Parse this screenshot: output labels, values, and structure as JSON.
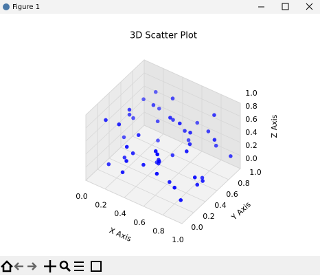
{
  "window": {
    "title": "Figure 1"
  },
  "chart_data": {
    "type": "scatter3d",
    "title": "3D Scatter Plot",
    "xlabel": "X Axis",
    "ylabel": "Y Axis",
    "zlabel": "Z Axis",
    "color": "#0000ff",
    "x": [
      0.12,
      0.85,
      0.43,
      0.67,
      0.21,
      0.95,
      0.34,
      0.58,
      0.08,
      0.77,
      0.49,
      0.29,
      0.91,
      0.15,
      0.63,
      0.38,
      0.72,
      0.05,
      0.54,
      0.83,
      0.26,
      0.97,
      0.44,
      0.61,
      0.18,
      0.79,
      0.36,
      0.69,
      0.02,
      0.88,
      0.52,
      0.24,
      0.74,
      0.41,
      0.93,
      0.11,
      0.57,
      0.32,
      0.81,
      0.66,
      0.47,
      0.99,
      0.19,
      0.71,
      0.06,
      0.86,
      0.39,
      0.55,
      0.28,
      0.76
    ],
    "y": [
      0.55,
      0.12,
      0.78,
      0.33,
      0.91,
      0.64,
      0.07,
      0.49,
      0.26,
      0.83,
      0.18,
      0.68,
      0.41,
      0.95,
      0.22,
      0.59,
      0.04,
      0.73,
      0.87,
      0.36,
      0.14,
      0.27,
      0.52,
      0.69,
      0.45,
      0.93,
      0.31,
      0.08,
      0.62,
      0.75,
      0.39,
      0.84,
      0.57,
      0.02,
      0.47,
      0.16,
      0.97,
      0.28,
      0.66,
      0.11,
      0.72,
      0.85,
      0.35,
      0.44,
      0.89,
      0.21,
      0.06,
      0.58,
      0.77,
      0.53
    ],
    "z": [
      0.62,
      0.35,
      0.88,
      0.14,
      0.47,
      0.71,
      0.29,
      0.93,
      0.08,
      0.56,
      0.41,
      0.77,
      0.19,
      0.65,
      0.52,
      0.03,
      0.84,
      0.37,
      0.24,
      0.69,
      0.91,
      0.46,
      0.11,
      0.58,
      0.82,
      0.27,
      0.67,
      0.49,
      0.15,
      0.95,
      0.33,
      0.06,
      0.74,
      0.55,
      0.21,
      0.86,
      0.44,
      0.39,
      0.02,
      0.79,
      0.63,
      0.31,
      0.18,
      0.97,
      0.53,
      0.09,
      0.72,
      0.26,
      0.44,
      0.61
    ],
    "xlim": [
      0,
      1
    ],
    "ylim": [
      0,
      1
    ],
    "zlim": [
      0,
      1
    ],
    "xticks": [
      {
        "value": 0,
        "label": "0.0"
      },
      0.2,
      0.4,
      0.6,
      0.8,
      {
        "value": 1,
        "label": "1.0"
      }
    ],
    "yticks": [
      {
        "value": 0,
        "label": "0.0"
      },
      0.2,
      0.4,
      0.6,
      0.8,
      {
        "value": 1,
        "label": "1.0"
      }
    ],
    "zticks": [
      {
        "value": 0,
        "label": "0.0"
      },
      0.2,
      0.4,
      0.6,
      0.8,
      {
        "value": 1,
        "label": "1.0"
      }
    ],
    "grid": true
  }
}
